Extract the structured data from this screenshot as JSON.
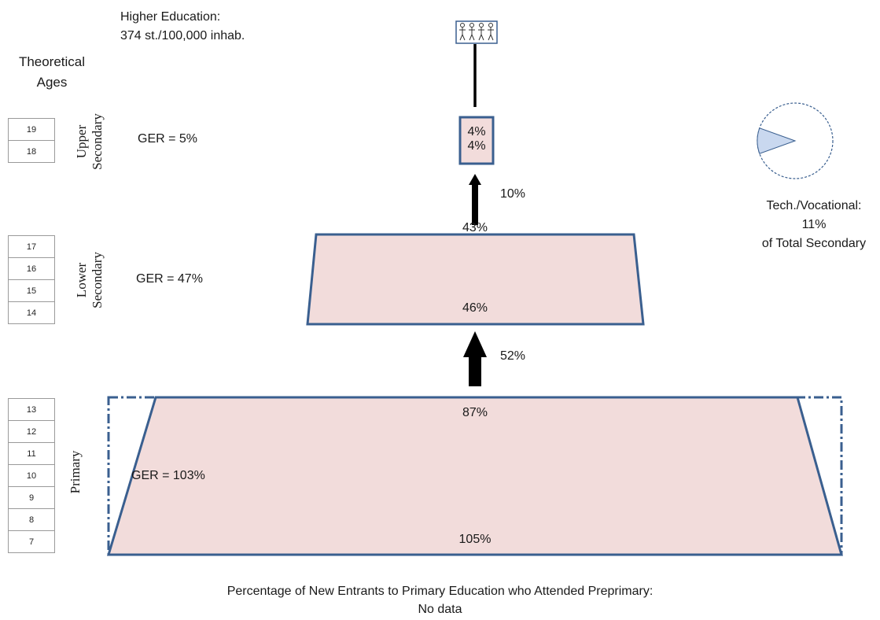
{
  "higher_education": {
    "title": "Higher Education:",
    "value": "374 st./100,000 inhab."
  },
  "theoretical_ages": {
    "title_line1": "Theoretical",
    "title_line2": "Ages"
  },
  "levels": {
    "upper_secondary": {
      "label_line1": "Upper",
      "label_line2": "Secondary",
      "ger": "GER = 5%",
      "ages": [
        "19",
        "18"
      ],
      "top_pct": "4%",
      "bottom_pct": "4%"
    },
    "lower_secondary": {
      "label_line1": "Lower",
      "label_line2": "Secondary",
      "ger": "GER = 47%",
      "ages": [
        "17",
        "16",
        "15",
        "14"
      ],
      "top_pct": "43%",
      "bottom_pct": "46%"
    },
    "primary": {
      "label": "Primary",
      "ger": "GER = 103%",
      "ages": [
        "13",
        "12",
        "11",
        "10",
        "9",
        "8",
        "7"
      ],
      "top_pct": "87%",
      "bottom_pct": "105%"
    }
  },
  "transitions": {
    "primary_to_lower": "52%",
    "lower_to_upper": "10%"
  },
  "technical_vocational": {
    "line1": "Tech./Vocational: 11%",
    "line2": "of Total Secondary",
    "share": 0.11
  },
  "footnote": {
    "line1": "Percentage of New Entrants to Primary Education who Attended Preprimary:",
    "line2": "No data"
  },
  "colors": {
    "fill": "#f2dcdb",
    "outline": "#3a5f8f",
    "pie_fill": "#c9d8ef",
    "arrow": "#000000"
  }
}
